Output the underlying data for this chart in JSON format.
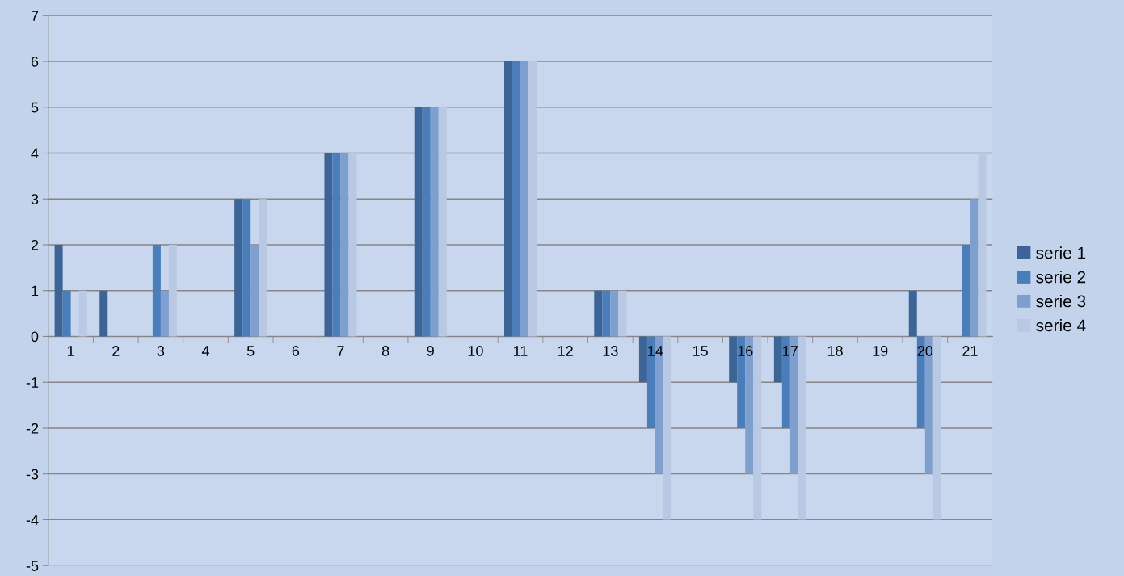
{
  "chart_data": {
    "type": "bar",
    "categories": [
      "1",
      "2",
      "3",
      "4",
      "5",
      "6",
      "7",
      "8",
      "9",
      "10",
      "11",
      "12",
      "13",
      "14",
      "15",
      "16",
      "17",
      "18",
      "19",
      "20",
      "21"
    ],
    "series": [
      {
        "name": "serie 1",
        "color": "#3d6496",
        "values": [
          2,
          1,
          0,
          0,
          3,
          0,
          4,
          0,
          5,
          0,
          6,
          0,
          1,
          -1,
          0,
          -1,
          -1,
          0,
          0,
          1,
          0
        ]
      },
      {
        "name": "serie 2",
        "color": "#4a7ebb",
        "values": [
          1,
          0,
          2,
          0,
          3,
          0,
          4,
          0,
          5,
          0,
          6,
          0,
          1,
          -2,
          0,
          -2,
          -2,
          0,
          0,
          -2,
          2
        ]
      },
      {
        "name": "serie 3",
        "color": "#7f9fcf",
        "values": [
          0,
          0,
          1,
          0,
          2,
          0,
          4,
          0,
          5,
          0,
          6,
          0,
          1,
          -3,
          0,
          -3,
          -3,
          0,
          0,
          -3,
          3
        ]
      },
      {
        "name": "serie 4",
        "color": "#b9c9e3",
        "values": [
          1,
          0,
          2,
          0,
          3,
          0,
          4,
          0,
          5,
          0,
          6,
          0,
          1,
          -4,
          0,
          -4,
          -4,
          0,
          0,
          -4,
          4
        ]
      }
    ],
    "ylim": [
      -5,
      7
    ],
    "yticks": [
      -5,
      -4,
      -3,
      -2,
      -1,
      0,
      1,
      2,
      3,
      4,
      5,
      6,
      7
    ],
    "grid": "y",
    "legend": "right"
  }
}
